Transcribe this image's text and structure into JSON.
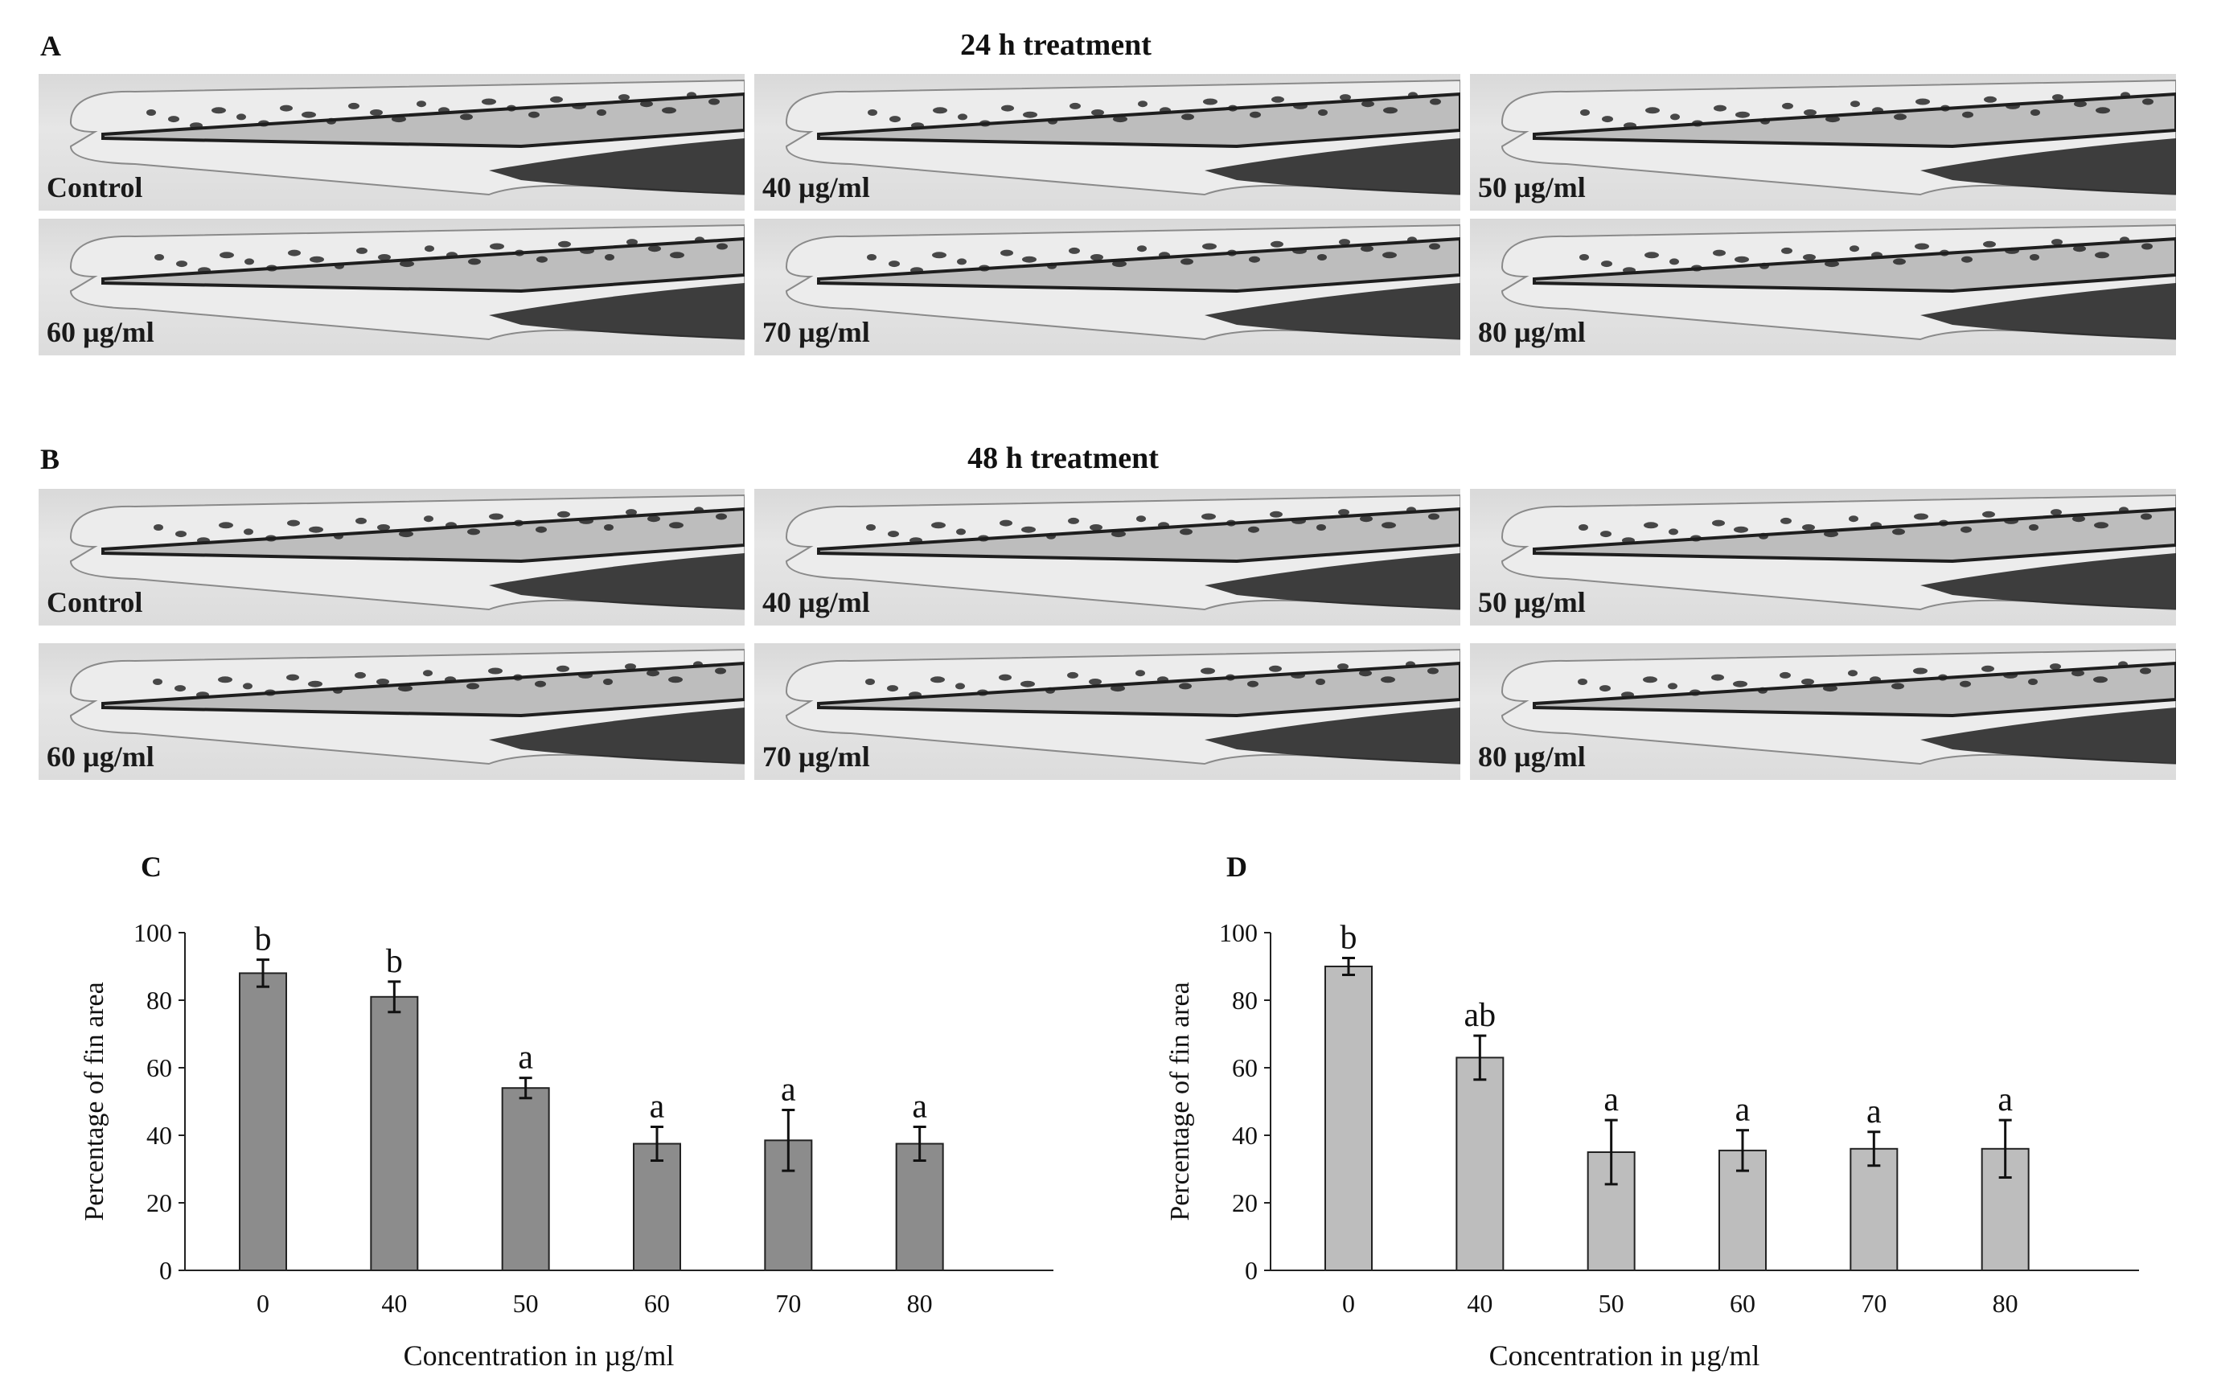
{
  "figure": {
    "panel_a": {
      "letter": "A",
      "title": "24 h treatment",
      "images": [
        {
          "label": "Control"
        },
        {
          "label": "40 µg/ml"
        },
        {
          "label": "50 µg/ml"
        },
        {
          "label": "60 µg/ml"
        },
        {
          "label": "70 µg/ml"
        },
        {
          "label": "80 µg/ml"
        }
      ]
    },
    "panel_b": {
      "letter": "B",
      "title": "48 h treatment",
      "images": [
        {
          "label": "Control"
        },
        {
          "label": "40 µg/ml"
        },
        {
          "label": "50 µg/ml"
        },
        {
          "label": "60 µg/ml"
        },
        {
          "label": "70 µg/ml"
        },
        {
          "label": "80 µg/ml"
        }
      ]
    }
  },
  "colors": {
    "bar_c": "#8c8c8c",
    "bar_d": "#bdbdbd",
    "micro_dark": "#1e1e1e"
  },
  "chart_data": [
    {
      "letter": "C",
      "type": "bar",
      "categories": [
        "0",
        "40",
        "50",
        "60",
        "70",
        "80"
      ],
      "values": [
        88,
        81,
        54,
        37.5,
        38.5,
        37.5
      ],
      "errors": [
        4,
        4.5,
        3,
        5,
        9,
        5
      ],
      "significance": [
        "b",
        "b",
        "a",
        "a",
        "a",
        "a"
      ],
      "xlabel": "Concentration in µg/ml",
      "ylabel": "Percentage of fin area",
      "ylim": [
        0,
        100
      ],
      "yticks": [
        0,
        20,
        40,
        60,
        80,
        100
      ]
    },
    {
      "letter": "D",
      "type": "bar",
      "categories": [
        "0",
        "40",
        "50",
        "60",
        "70",
        "80"
      ],
      "values": [
        90,
        63,
        35,
        35.5,
        36,
        36
      ],
      "errors": [
        2.5,
        6.5,
        9.5,
        6,
        5,
        8.5
      ],
      "significance": [
        "b",
        "ab",
        "a",
        "a",
        "a",
        "a"
      ],
      "xlabel": "Concentration in µg/ml",
      "ylabel": "Percentage of fin area",
      "ylim": [
        0,
        100
      ],
      "yticks": [
        0,
        20,
        40,
        60,
        80,
        100
      ]
    }
  ]
}
